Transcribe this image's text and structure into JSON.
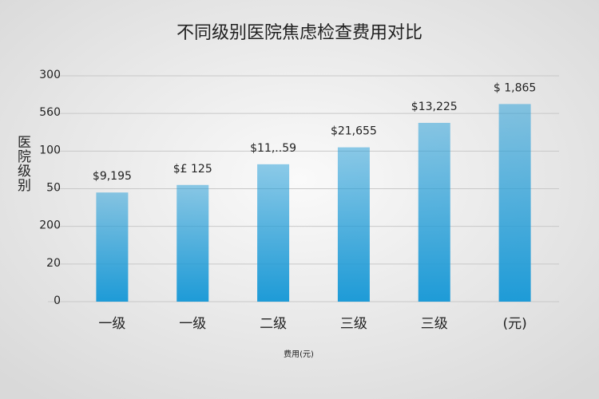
{
  "chart_data": {
    "type": "bar",
    "title": "不同级别医院焦虑检查费用对比",
    "y_label": "医院级别",
    "x_label": "费用(元)",
    "categories": [
      "一级",
      "一级",
      "二级",
      "三级",
      "三级",
      "(元)"
    ],
    "values": [
      2.9,
      3.1,
      3.65,
      4.1,
      4.75,
      5.25
    ],
    "annotations": [
      "$9,195",
      "$£ 125",
      "$11,..59",
      "$21,655",
      "$13,225",
      "$ 1,865"
    ],
    "color": "#1e9bd7",
    "ylim": [
      0,
      6
    ],
    "yticks": [
      0,
      {
        "value": 1,
        "label": "20"
      },
      {
        "value": 2,
        "label": "200"
      },
      {
        "value": 3,
        "label": "50"
      },
      {
        "value": 4,
        "label": "100"
      },
      {
        "value": 5,
        "label": "560"
      },
      {
        "value": 6,
        "label": "300"
      }
    ],
    "grid": true
  }
}
